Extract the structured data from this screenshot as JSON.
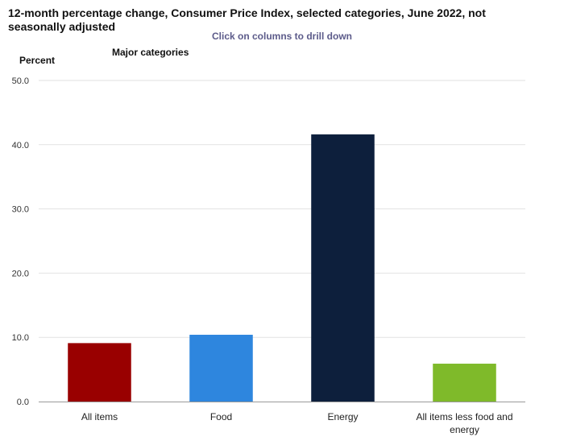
{
  "chart_data": {
    "type": "bar",
    "title": "12-month percentage change, Consumer Price Index, selected categories, June 2022, not seasonally adjusted",
    "subtitle": "Click on columns to drill down",
    "ylabel": "Percent",
    "series_label": "Major categories",
    "xlabel": "",
    "ylim": [
      0,
      50
    ],
    "yticks": [
      "0.0",
      "10.0",
      "20.0",
      "30.0",
      "40.0",
      "50.0"
    ],
    "ytick_values": [
      0,
      10,
      20,
      30,
      40,
      50
    ],
    "grid": true,
    "categories": [
      "All items",
      "Food",
      "Energy",
      "All items less food and energy"
    ],
    "category_lines": [
      [
        "All items"
      ],
      [
        "Food"
      ],
      [
        "Energy"
      ],
      [
        "All items less food and",
        "energy"
      ]
    ],
    "values": [
      9.1,
      10.4,
      41.6,
      5.9
    ],
    "colors": [
      "#990000",
      "#2e86de",
      "#0d1f3c",
      "#7fba2a"
    ]
  }
}
